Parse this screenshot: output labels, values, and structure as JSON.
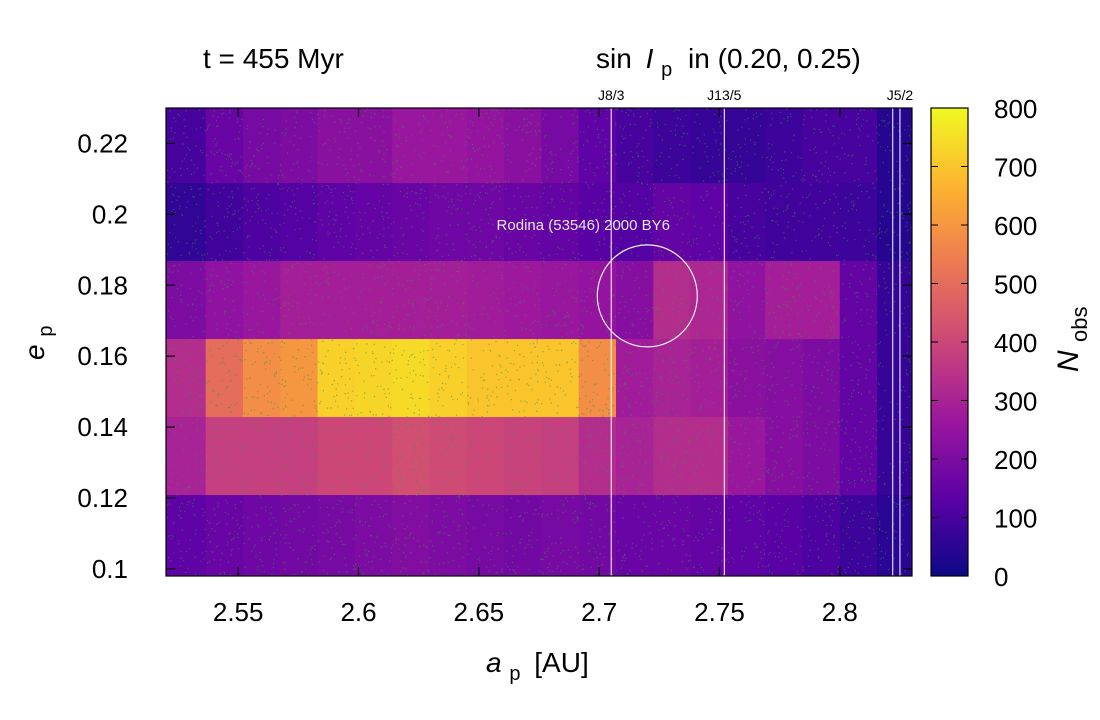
{
  "chart_data": {
    "type": "heatmap",
    "title_left": "t = 455 Myr",
    "title_right": {
      "prefix": "sin",
      "sym": "I",
      "sub": "p",
      "suffix": "in (0.20, 0.25)"
    },
    "xlabel": {
      "sym": "a",
      "sub": "p",
      "unit": "[AU]"
    },
    "ylabel": {
      "sym": "e",
      "sub": "p"
    },
    "colorbar_label": {
      "sym": "N",
      "sub": "obs"
    },
    "xlim": [
      2.52,
      2.83
    ],
    "ylim": [
      0.098,
      0.23
    ],
    "colorbar_range": [
      0,
      800
    ],
    "x_ticks": [
      {
        "value": 2.55,
        "label": "2.55"
      },
      {
        "value": 2.6,
        "label": "2.6"
      },
      {
        "value": 2.65,
        "label": "2.65"
      },
      {
        "value": 2.7,
        "label": "2.7"
      },
      {
        "value": 2.75,
        "label": "2.75"
      },
      {
        "value": 2.8,
        "label": "2.8"
      }
    ],
    "y_ticks": [
      {
        "value": 0.1,
        "label": "0.1"
      },
      {
        "value": 0.12,
        "label": "0.12"
      },
      {
        "value": 0.14,
        "label": "0.14"
      },
      {
        "value": 0.16,
        "label": "0.16"
      },
      {
        "value": 0.18,
        "label": "0.18"
      },
      {
        "value": 0.2,
        "label": "0.2"
      },
      {
        "value": 0.22,
        "label": "0.22"
      }
    ],
    "colorbar_ticks": [
      {
        "value": 0,
        "label": "0"
      },
      {
        "value": 100,
        "label": "100"
      },
      {
        "value": 200,
        "label": "200"
      },
      {
        "value": 300,
        "label": "300"
      },
      {
        "value": 400,
        "label": "400"
      },
      {
        "value": 500,
        "label": "500"
      },
      {
        "value": 600,
        "label": "600"
      },
      {
        "value": 700,
        "label": "700"
      },
      {
        "value": 800,
        "label": "800"
      }
    ],
    "colormap": [
      "#0d0887",
      "#5c01a6",
      "#9c179e",
      "#cc4778",
      "#ed7953",
      "#fdb42f",
      "#f0f921"
    ],
    "x_edges": [
      2.52,
      2.5365,
      2.552,
      2.5675,
      2.583,
      2.5985,
      2.614,
      2.6295,
      2.645,
      2.6605,
      2.676,
      2.6915,
      2.707,
      2.7225,
      2.738,
      2.7535,
      2.769,
      2.7845,
      2.8,
      2.8155,
      2.83
    ],
    "y_edges": [
      0.098,
      0.121,
      0.143,
      0.165,
      0.187,
      0.209,
      0.23
    ],
    "values": [
      [
        140,
        160,
        170,
        180,
        190,
        200,
        210,
        200,
        190,
        180,
        190,
        180,
        160,
        160,
        150,
        140,
        130,
        110,
        80,
        50
      ],
      [
        300,
        380,
        380,
        380,
        400,
        400,
        420,
        410,
        400,
        390,
        380,
        330,
        300,
        330,
        330,
        260,
        220,
        200,
        150,
        70
      ],
      [
        330,
        500,
        580,
        600,
        720,
        730,
        740,
        720,
        700,
        700,
        700,
        580,
        280,
        300,
        290,
        230,
        220,
        200,
        150,
        70
      ],
      [
        200,
        240,
        260,
        290,
        290,
        290,
        290,
        290,
        280,
        270,
        260,
        250,
        220,
        330,
        310,
        240,
        290,
        290,
        150,
        70
      ],
      [
        60,
        90,
        110,
        120,
        140,
        150,
        160,
        170,
        170,
        160,
        150,
        130,
        120,
        150,
        140,
        100,
        90,
        90,
        80,
        40
      ],
      [
        100,
        160,
        190,
        200,
        230,
        230,
        260,
        260,
        250,
        230,
        190,
        140,
        100,
        80,
        70,
        70,
        80,
        100,
        100,
        40
      ]
    ],
    "resonances": [
      {
        "name": "J8/3",
        "a": 2.705
      },
      {
        "name": "J13/5",
        "a": 2.752
      },
      {
        "name": "J5/2",
        "a": 2.825
      }
    ],
    "edge_lines_a": [
      2.822
    ],
    "annotation": {
      "label": "Rodina (53546) 2000 BY6",
      "a": 2.72,
      "e": 0.177
    }
  }
}
